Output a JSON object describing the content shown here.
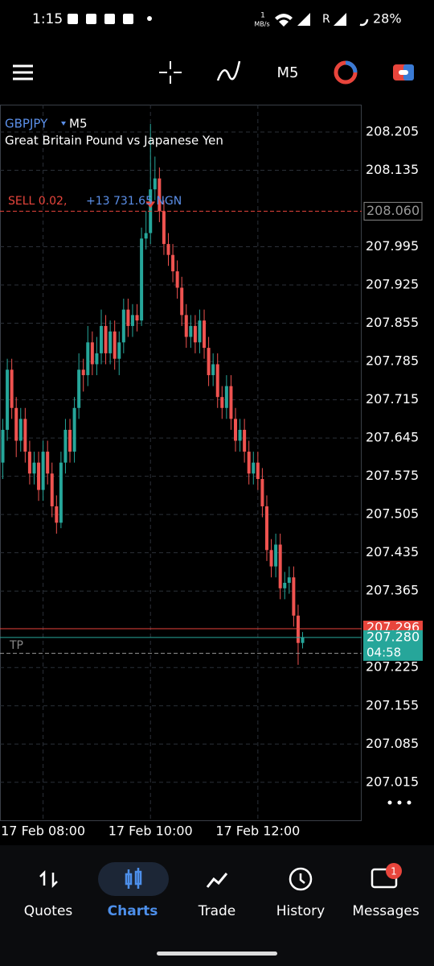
{
  "status_bar": {
    "time": "1:15",
    "network_speed": "1",
    "network_unit": "MB/s",
    "roaming": "R",
    "battery": "28%"
  },
  "toolbar": {
    "timeframe": "M5"
  },
  "chart_data": {
    "type": "candlestick",
    "symbol": "GBPJPY",
    "timeframe": "M5",
    "subtitle": "Great Britain Pound vs Japanese Yen",
    "open": [
      207.6,
      207.66,
      207.77,
      207.7,
      207.64,
      207.68,
      207.62,
      207.58,
      207.6,
      207.55,
      207.62,
      207.58,
      207.52,
      207.49,
      207.6,
      207.66,
      207.62,
      207.7,
      207.77,
      207.76,
      207.82,
      207.78,
      207.8,
      207.85,
      207.8,
      207.84,
      207.79,
      207.82,
      207.88,
      207.85,
      207.87,
      207.86,
      208.01,
      208.02,
      208.1,
      208.12,
      208.06,
      208.0,
      207.98,
      207.95,
      207.92,
      207.87,
      207.83,
      207.85,
      207.82,
      207.86,
      207.81,
      207.76,
      207.78,
      207.72,
      207.7,
      207.74,
      207.68,
      207.64,
      207.66,
      207.62,
      207.58,
      207.6,
      207.57,
      207.52,
      207.44,
      207.41,
      207.45,
      207.37,
      207.38,
      207.39,
      207.32,
      207.27
    ],
    "high": [
      207.68,
      207.79,
      207.79,
      207.72,
      207.7,
      207.7,
      207.64,
      207.62,
      207.62,
      207.64,
      207.64,
      207.6,
      207.54,
      207.62,
      207.68,
      207.68,
      207.72,
      207.8,
      207.79,
      207.85,
      207.84,
      207.83,
      207.88,
      207.87,
      207.86,
      207.86,
      207.84,
      207.9,
      207.9,
      207.89,
      207.89,
      208.03,
      208.06,
      208.22,
      208.16,
      208.14,
      208.08,
      208.02,
      208.0,
      207.97,
      207.94,
      207.89,
      207.87,
      207.87,
      207.88,
      207.88,
      207.83,
      207.8,
      207.8,
      207.74,
      207.76,
      207.76,
      207.7,
      207.68,
      207.68,
      207.64,
      207.62,
      207.62,
      207.59,
      207.54,
      207.46,
      207.47,
      207.47,
      207.4,
      207.41,
      207.41,
      207.34,
      207.29
    ],
    "low": [
      207.57,
      207.64,
      207.68,
      207.61,
      207.62,
      207.6,
      207.56,
      207.56,
      207.53,
      207.53,
      207.56,
      207.5,
      207.47,
      207.48,
      207.58,
      207.6,
      207.6,
      207.68,
      207.73,
      207.74,
      207.76,
      207.76,
      207.78,
      207.78,
      207.78,
      207.77,
      207.76,
      207.8,
      207.83,
      207.83,
      207.84,
      207.85,
      207.99,
      208.0,
      208.08,
      208.04,
      207.98,
      207.96,
      207.93,
      207.9,
      207.85,
      207.81,
      207.81,
      207.8,
      207.8,
      207.79,
      207.74,
      207.74,
      207.7,
      207.68,
      207.68,
      207.66,
      207.62,
      207.62,
      207.6,
      207.56,
      207.56,
      207.55,
      207.5,
      207.42,
      207.39,
      207.39,
      207.35,
      207.35,
      207.36,
      207.3,
      207.23,
      207.26
    ],
    "close": [
      207.66,
      207.77,
      207.7,
      207.64,
      207.68,
      207.62,
      207.58,
      207.6,
      207.55,
      207.62,
      207.58,
      207.52,
      207.49,
      207.6,
      207.66,
      207.62,
      207.7,
      207.77,
      207.76,
      207.82,
      207.78,
      207.8,
      207.85,
      207.8,
      207.84,
      207.79,
      207.82,
      207.88,
      207.85,
      207.87,
      207.86,
      208.01,
      208.02,
      208.1,
      208.12,
      208.06,
      208.0,
      207.98,
      207.95,
      207.92,
      207.87,
      207.83,
      207.85,
      207.82,
      207.86,
      207.81,
      207.76,
      207.78,
      207.72,
      207.7,
      207.74,
      207.68,
      207.64,
      207.66,
      207.62,
      207.58,
      207.6,
      207.57,
      207.52,
      207.44,
      207.41,
      207.45,
      207.37,
      207.38,
      207.39,
      207.32,
      207.27,
      207.28
    ],
    "up_color": "#26a69a",
    "down_color": "#ef5350",
    "ylim": [
      206.944,
      208.255
    ],
    "yticks": [
      208.205,
      208.135,
      207.995,
      207.925,
      207.855,
      207.785,
      207.715,
      207.645,
      207.575,
      207.505,
      207.435,
      207.365,
      207.225,
      207.155,
      207.085,
      207.015
    ],
    "xlim": [
      -0.63,
      80.2
    ],
    "xticks": [
      {
        "value": 9,
        "label": "17 Feb 08:00"
      },
      {
        "value": 33,
        "label": "17 Feb 10:00"
      },
      {
        "value": 57,
        "label": "17 Feb 12:00"
      }
    ],
    "grid": true,
    "position": {
      "label": "SELL 0.02,",
      "profit": "+13 731.65 NGN",
      "price": {
        "value": 208.06,
        "label": "208.060"
      }
    },
    "bid": 207.296,
    "ask": {
      "value": 207.28,
      "label": "207.280"
    },
    "countdown": "04:58",
    "tp": {
      "label": "TP",
      "price": 207.251
    }
  },
  "nav": {
    "items": [
      "Quotes",
      "Charts",
      "Trade",
      "History",
      "Messages"
    ],
    "badge": "1"
  }
}
